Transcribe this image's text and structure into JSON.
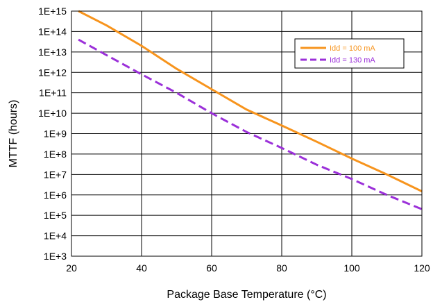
{
  "chart_data": {
    "type": "line",
    "title": "",
    "xlabel": "Package Base Temperature (°C)",
    "ylabel": "MTTF (hours)",
    "xlim": [
      20,
      120
    ],
    "ylim": [
      1000,
      1000000000000000.0
    ],
    "yscale": "log",
    "grid": true,
    "legend_position": "top-right",
    "x_ticks": [
      20,
      40,
      60,
      80,
      100,
      120
    ],
    "x_tick_labels": [
      "20",
      "40",
      "60",
      "80",
      "100",
      "120"
    ],
    "y_ticks": [
      1000000000000000.0,
      100000000000000.0,
      10000000000000.0,
      1000000000000.0,
      100000000000.0,
      10000000000.0,
      1000000000.0,
      100000000.0,
      10000000.0,
      1000000.0,
      100000.0,
      10000.0,
      1000.0
    ],
    "y_tick_labels": [
      "1E+15",
      "1E+14",
      "1E+13",
      "1E+12",
      "1E+11",
      "1E+10",
      "1E+9",
      "1E+8",
      "1E+7",
      "1E+6",
      "1E+5",
      "1E+4",
      "1E+3"
    ],
    "series": [
      {
        "name": "Idd = 100 mA",
        "color": "#F7941D",
        "style": "solid",
        "x": [
          22,
          30,
          40,
          50,
          60,
          70,
          80,
          90,
          100,
          110,
          120
        ],
        "y": [
          1000000000000000.0,
          200000000000000.0,
          20000000000000.0,
          1500000000000.0,
          150000000000.0,
          15000000000.0,
          2500000000.0,
          400000000.0,
          60000000.0,
          10000000.0,
          1500000.0
        ]
      },
      {
        "name": "Idd = 130 mA",
        "color": "#9B30D9",
        "style": "dashed",
        "x": [
          22,
          30,
          40,
          50,
          60,
          70,
          80,
          90,
          100,
          110,
          120
        ],
        "y": [
          40000000000000.0,
          7000000000000.0,
          800000000000.0,
          100000000000.0,
          10000000000.0,
          1200000000.0,
          200000000.0,
          30000000.0,
          6000000.0,
          1000000.0,
          200000.0
        ]
      }
    ]
  }
}
